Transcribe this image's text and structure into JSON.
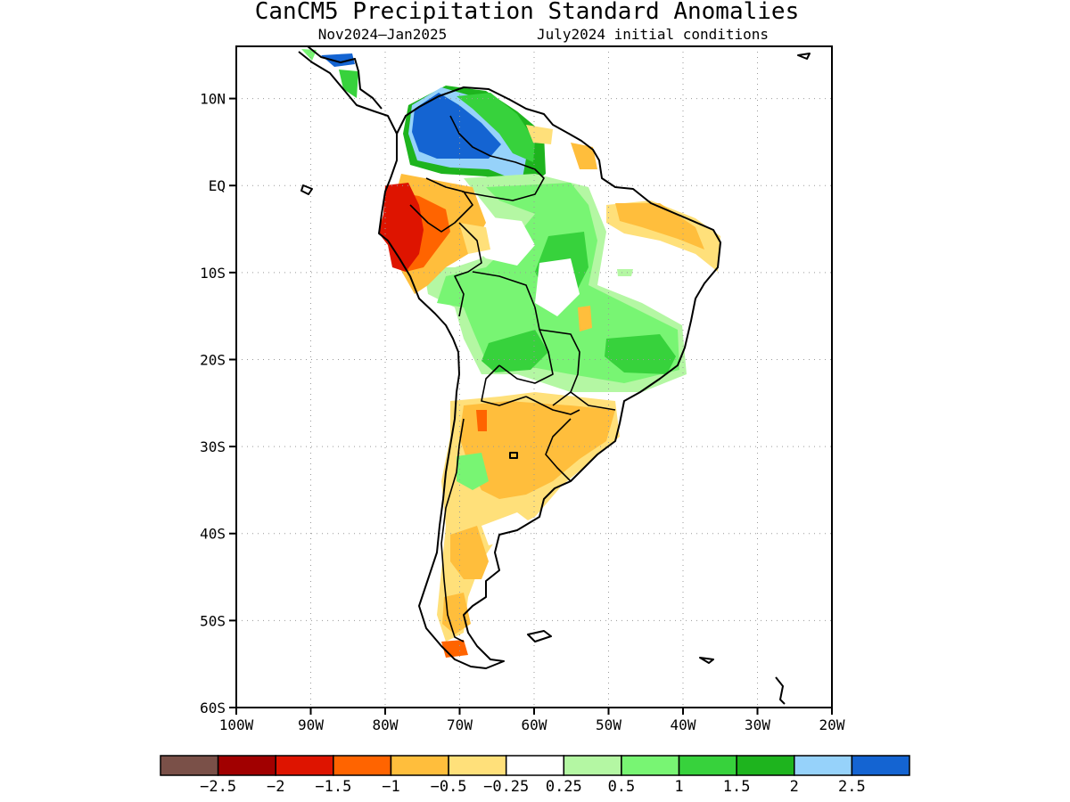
{
  "title": "CanCM5 Precipitation Standard Anomalies",
  "subtitle_period": "Nov2024–Jan2025",
  "subtitle_ic": "July2024 initial conditions",
  "map": {
    "region": "South America",
    "lon_range": [
      -100,
      -20
    ],
    "lat_range": [
      -60,
      16
    ],
    "grid": true,
    "lat_ticks": [
      {
        "value": 10,
        "label": "10N"
      },
      {
        "value": 0,
        "label": "EQ"
      },
      {
        "value": -10,
        "label": "10S"
      },
      {
        "value": -20,
        "label": "20S"
      },
      {
        "value": -30,
        "label": "30S"
      },
      {
        "value": -40,
        "label": "40S"
      },
      {
        "value": -50,
        "label": "50S"
      },
      {
        "value": -60,
        "label": "60S"
      }
    ],
    "lon_ticks": [
      {
        "value": -100,
        "label": "100W"
      },
      {
        "value": -90,
        "label": "90W"
      },
      {
        "value": -80,
        "label": "80W"
      },
      {
        "value": -70,
        "label": "70W"
      },
      {
        "value": -60,
        "label": "60W"
      },
      {
        "value": -50,
        "label": "50W"
      },
      {
        "value": -40,
        "label": "40W"
      },
      {
        "value": -30,
        "label": "30W"
      },
      {
        "value": -20,
        "label": "20W"
      }
    ]
  },
  "colorbar": {
    "colors": [
      "#7a5048",
      "#a10000",
      "#de1400",
      "#ff6400",
      "#ffbe3c",
      "#ffe07a",
      "#ffffff",
      "#b4f7a3",
      "#78f573",
      "#37d23c",
      "#1eb41e",
      "#96d2fa",
      "#1464d2"
    ],
    "labels": [
      "−2.5",
      "−2",
      "−1.5",
      "−1",
      "−0.5",
      "−0.25",
      "0.25",
      "0.5",
      "1",
      "1.5",
      "2",
      "2.5"
    ]
  },
  "anomaly_regions": [
    {
      "level": "-1.5",
      "color": "#de1400",
      "label": "western Ecuador / northern Peru"
    },
    {
      "level": "-1",
      "color": "#ff6400",
      "label": "northern Peru"
    },
    {
      "level": "-0.5",
      "color": "#ffbe3c",
      "label": "northern Argentina / Uruguay / Patagonia"
    },
    {
      "level": "0.5",
      "color": "#78f573",
      "label": "central Brazil / Bolivia"
    },
    {
      "level": "1.5",
      "color": "#37d23c",
      "label": "southeastern Brazil"
    },
    {
      "level": "2.5",
      "color": "#1464d2",
      "label": "Colombia / western Venezuela"
    }
  ]
}
